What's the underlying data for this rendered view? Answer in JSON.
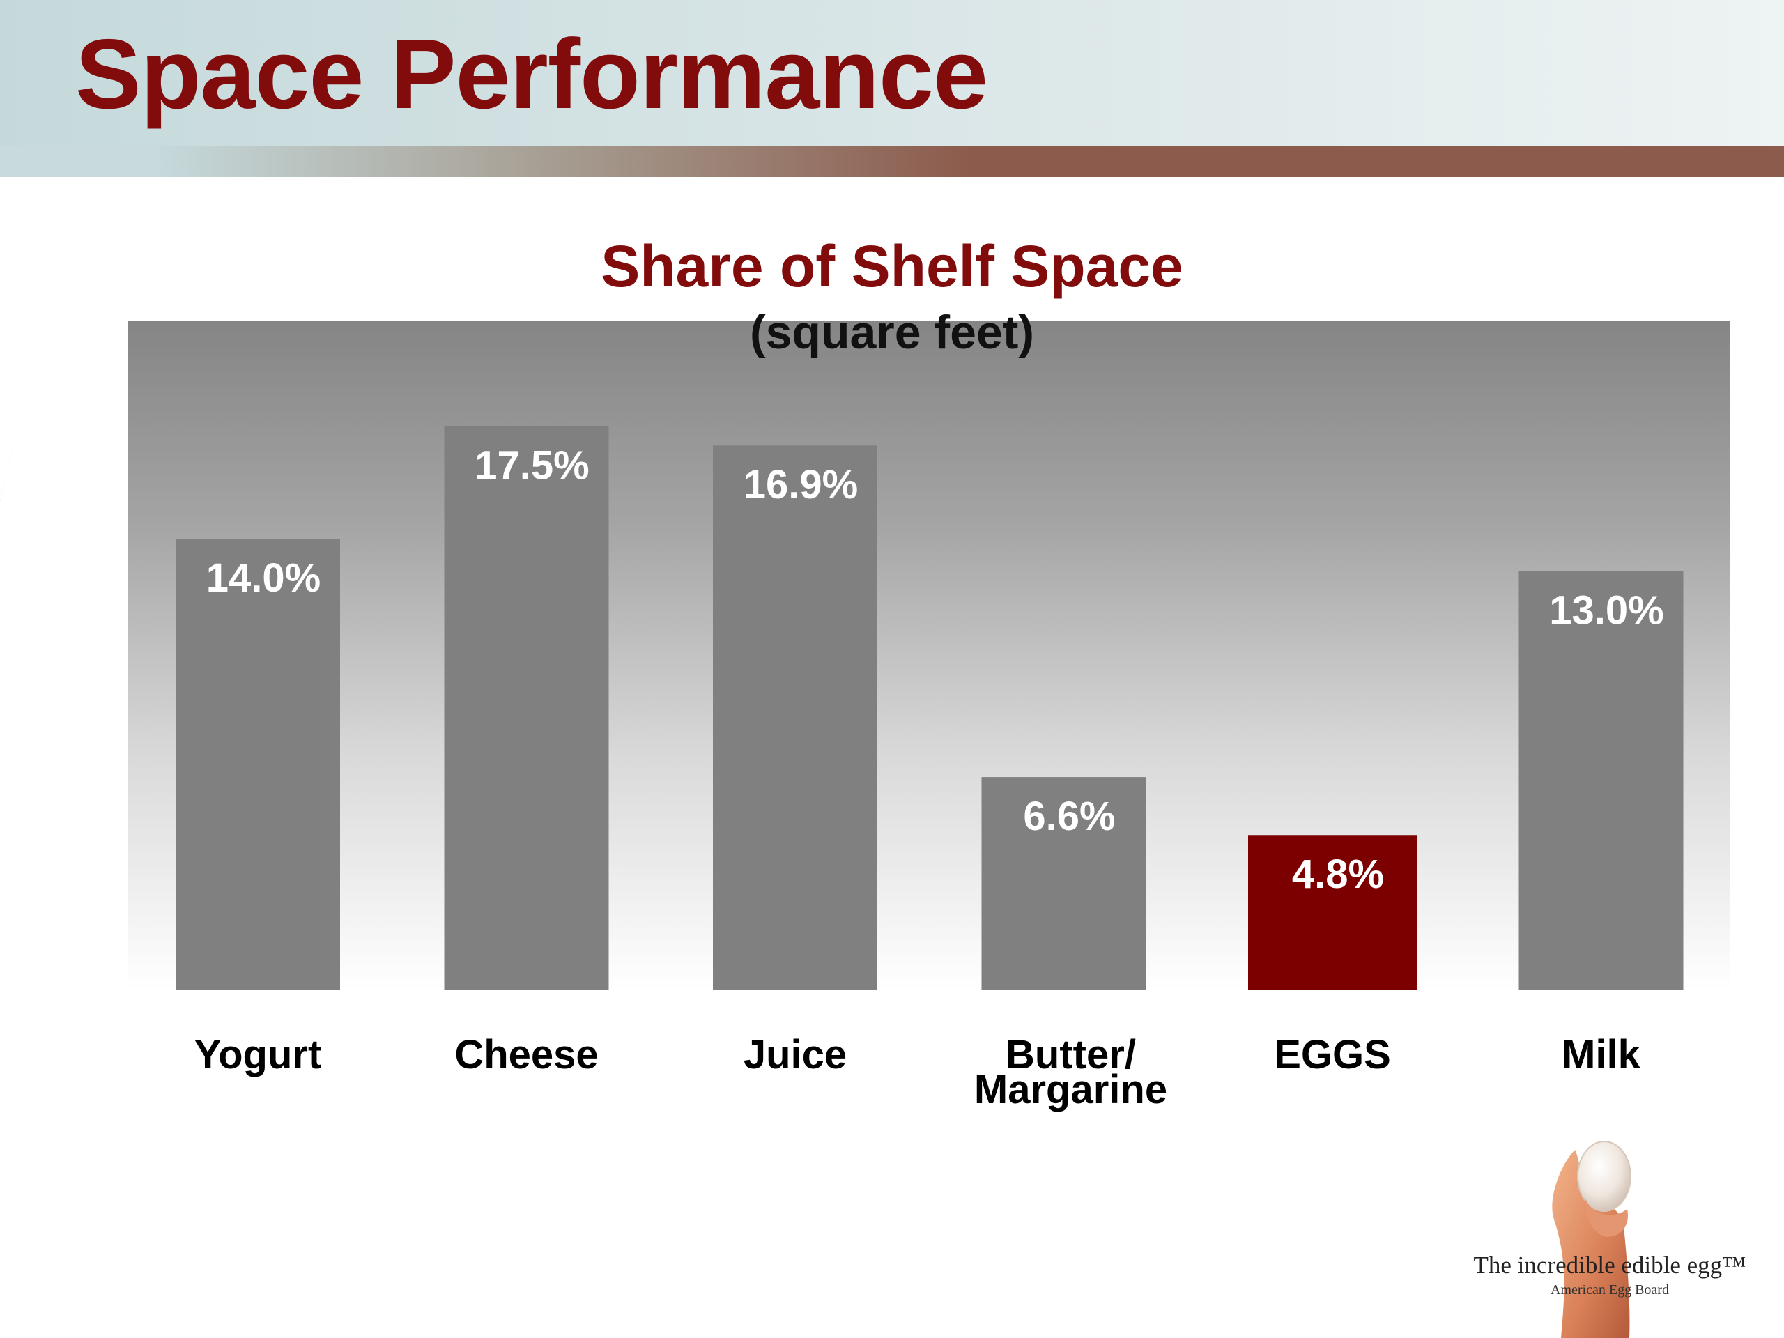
{
  "page": {
    "title": "Space Performance"
  },
  "colors": {
    "title": "#820c0c",
    "bar": "#808080",
    "highlight_bar": "#7d0000",
    "plot_top": "#858585",
    "plot_bottom": "#ffffff",
    "accent_stripe": "#8c5b4c"
  },
  "chart_data": {
    "type": "bar",
    "title": "Share of Shelf Space",
    "subtitle": "(square feet)",
    "unit": "%",
    "categories": [
      "Yogurt",
      "Cheese",
      "Juice",
      "Butter/ Margarine",
      "EGGS",
      "Milk"
    ],
    "category_lines": [
      [
        "Yogurt"
      ],
      [
        "Cheese"
      ],
      [
        "Juice"
      ],
      [
        "Butter/",
        "Margarine"
      ],
      [
        "EGGS"
      ],
      [
        "Milk"
      ]
    ],
    "values": [
      14.0,
      17.5,
      16.9,
      6.6,
      4.8,
      13.0
    ],
    "data_labels": [
      "14.0%",
      "17.5%",
      "16.9%",
      "6.6%",
      "4.8%",
      "13.0%"
    ],
    "highlight_category": "EGGS",
    "ylim": [
      0,
      20
    ],
    "grid": false,
    "legend": "none"
  },
  "logo": {
    "text": "The incredible edible egg™",
    "subtext": "American Egg Board"
  }
}
